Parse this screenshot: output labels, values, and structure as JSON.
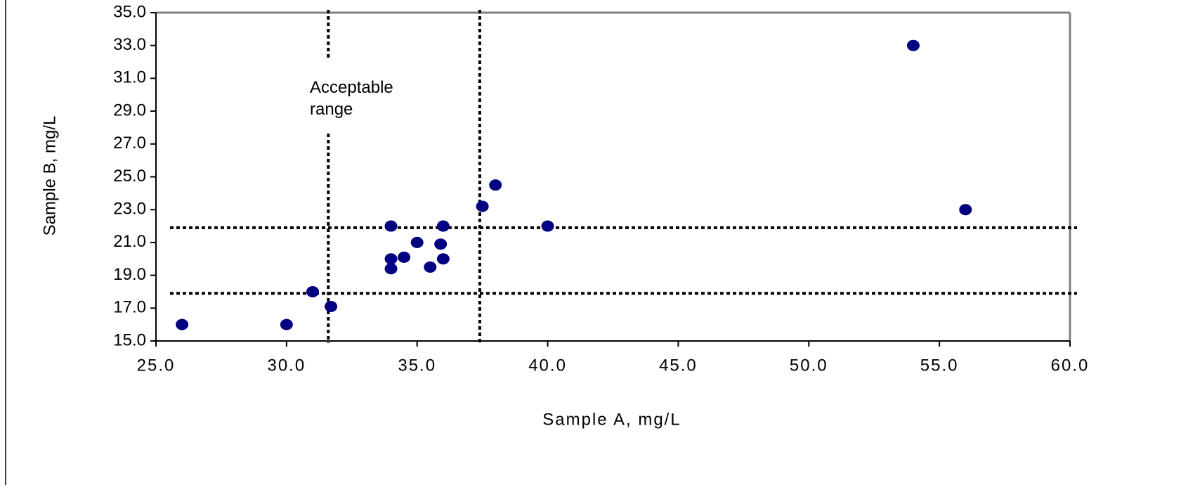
{
  "chart_data": {
    "type": "scatter",
    "annotation": "Acceptable range",
    "x_label": "Sample A, mg/L",
    "y_label": "Sample B, mg/L",
    "x": [
      26.0,
      30.0,
      31.0,
      31.7,
      34.0,
      34.0,
      34.0,
      34.5,
      35.0,
      35.5,
      35.9,
      36.0,
      36.0,
      37.5,
      38.0,
      40.0,
      54.0,
      56.0
    ],
    "values": [
      16.0,
      16.0,
      18.0,
      17.1,
      22.0,
      20.0,
      19.4,
      20.1,
      21.0,
      19.5,
      20.9,
      22.0,
      20.0,
      23.2,
      24.5,
      22.0,
      33.0,
      23.0
    ],
    "color": "#000080",
    "vlines": [
      31.6,
      37.4
    ],
    "hlines": [
      21.9,
      17.9
    ],
    "xlim": [
      25,
      60
    ],
    "ylim": [
      15,
      35
    ],
    "xticks": [
      {
        "value": 25,
        "label": "25.0"
      },
      {
        "value": 30,
        "label": "30.0"
      },
      {
        "value": 35,
        "label": "35.0"
      },
      {
        "value": 40,
        "label": "40.0"
      },
      {
        "value": 45,
        "label": "45.0"
      },
      {
        "value": 50,
        "label": "50.0"
      },
      {
        "value": 55,
        "label": "55.0"
      },
      {
        "value": 60,
        "label": "60.0"
      }
    ],
    "yticks": [
      {
        "value": 15,
        "label": "15.0"
      },
      {
        "value": 17,
        "label": "17.0"
      },
      {
        "value": 19,
        "label": "19.0"
      },
      {
        "value": 21,
        "label": "21.0"
      },
      {
        "value": 23,
        "label": "23.0"
      },
      {
        "value": 25,
        "label": "25.0"
      },
      {
        "value": 27,
        "label": "27.0"
      },
      {
        "value": 29,
        "label": "29.0"
      },
      {
        "value": 31,
        "label": "31.0"
      },
      {
        "value": 33,
        "label": "33.0"
      },
      {
        "value": 35,
        "label": "35.0"
      }
    ],
    "grid": false
  }
}
